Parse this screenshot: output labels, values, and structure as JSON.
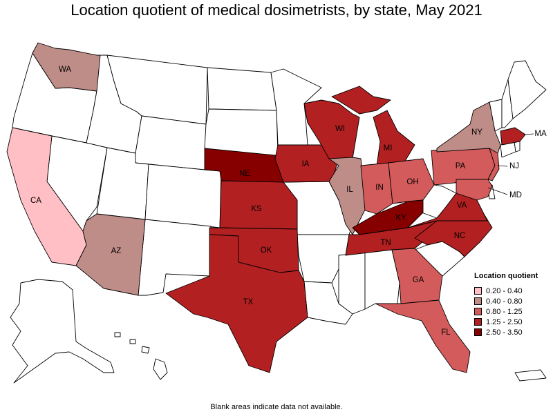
{
  "title": "Location quotient of medical dosimetrists, by state, May 2021",
  "footnote": "Blank areas indicate data not available.",
  "legend": {
    "title": "Location quotient",
    "items": [
      {
        "label": "0.20 - 0.40",
        "color": "#ffbfc4"
      },
      {
        "label": "0.40 - 0.80",
        "color": "#bf8d88"
      },
      {
        "label": "0.80 - 1.25",
        "color": "#d45b5b"
      },
      {
        "label": "1.25 - 2.50",
        "color": "#b22021"
      },
      {
        "label": "2.50 - 3.50",
        "color": "#870000"
      }
    ]
  },
  "states": [
    {
      "abbr": "WA",
      "range": "0.40 - 0.80"
    },
    {
      "abbr": "CA",
      "range": "0.20 - 0.40"
    },
    {
      "abbr": "AZ",
      "range": "0.40 - 0.80"
    },
    {
      "abbr": "NE",
      "range": "2.50 - 3.50"
    },
    {
      "abbr": "KS",
      "range": "1.25 - 2.50"
    },
    {
      "abbr": "OK",
      "range": "1.25 - 2.50"
    },
    {
      "abbr": "TX",
      "range": "1.25 - 2.50"
    },
    {
      "abbr": "IA",
      "range": "1.25 - 2.50"
    },
    {
      "abbr": "WI",
      "range": "1.25 - 2.50"
    },
    {
      "abbr": "IL",
      "range": "0.40 - 0.80"
    },
    {
      "abbr": "MI",
      "range": "1.25 - 2.50"
    },
    {
      "abbr": "IN",
      "range": "0.80 - 1.25"
    },
    {
      "abbr": "OH",
      "range": "0.80 - 1.25"
    },
    {
      "abbr": "KY",
      "range": "2.50 - 3.50"
    },
    {
      "abbr": "TN",
      "range": "1.25 - 2.50"
    },
    {
      "abbr": "GA",
      "range": "0.80 - 1.25"
    },
    {
      "abbr": "FL",
      "range": "0.80 - 1.25"
    },
    {
      "abbr": "NC",
      "range": "1.25 - 2.50"
    },
    {
      "abbr": "VA",
      "range": "1.25 - 2.50"
    },
    {
      "abbr": "PA",
      "range": "0.80 - 1.25"
    },
    {
      "abbr": "NY",
      "range": "0.40 - 0.80"
    },
    {
      "abbr": "NJ",
      "range": "0.80 - 1.25"
    },
    {
      "abbr": "MD",
      "range": "0.80 - 1.25"
    },
    {
      "abbr": "MA",
      "range": "1.25 - 2.50"
    }
  ]
}
